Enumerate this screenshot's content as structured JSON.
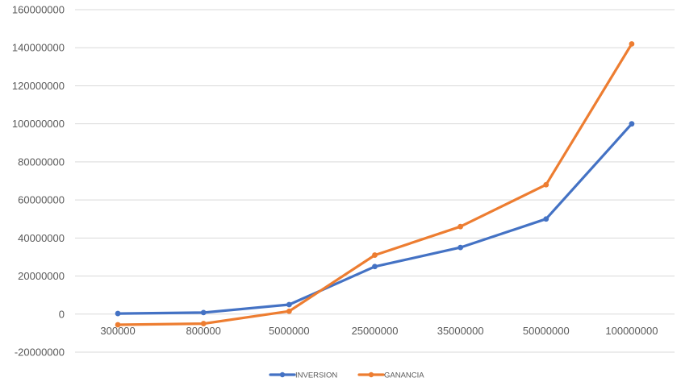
{
  "chart_data": {
    "type": "line",
    "title": "",
    "xlabel": "",
    "ylabel": "",
    "categories": [
      "300000",
      "800000",
      "5000000",
      "25000000",
      "35000000",
      "50000000",
      "100000000"
    ],
    "ylim": [
      -20000000,
      160000000
    ],
    "yticks": [
      -20000000,
      0,
      20000000,
      40000000,
      60000000,
      80000000,
      100000000,
      120000000,
      140000000,
      160000000
    ],
    "ytick_labels": [
      "-20000000",
      "0",
      "20000000",
      "40000000",
      "60000000",
      "80000000",
      "100000000",
      "120000000",
      "140000000",
      "160000000"
    ],
    "grid": true,
    "legend_position": "bottom",
    "series": [
      {
        "name": "INVERSION",
        "color": "#4472C4",
        "values": [
          300000,
          800000,
          5000000,
          25000000,
          35000000,
          50000000,
          100000000
        ]
      },
      {
        "name": "GANANCIA",
        "color": "#ED7D31",
        "values": [
          -5600000,
          -5000000,
          1500000,
          31000000,
          46000000,
          68000000,
          142000000
        ]
      }
    ]
  }
}
